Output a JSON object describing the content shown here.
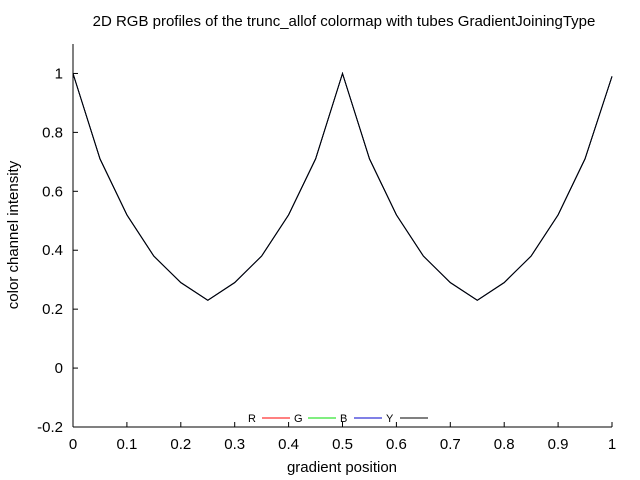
{
  "chart_data": {
    "type": "line",
    "title": "2D RGB profiles of the trunc_allof colormap with tubes GradientJoiningType",
    "xlabel": "gradient position",
    "ylabel": "color channel intensity",
    "xlim": [
      0,
      1
    ],
    "ylim": [
      -0.2,
      1.1
    ],
    "xticks": [
      "0",
      "0.1",
      "0.2",
      "0.3",
      "0.4",
      "0.5",
      "0.6",
      "0.7",
      "0.8",
      "0.9",
      "1"
    ],
    "yticks": [
      "-0.2",
      "0",
      "0.2",
      "0.4",
      "0.6",
      "0.8",
      "1"
    ],
    "grid": false,
    "legend_position": "bottom-center",
    "series": [
      {
        "name": "R",
        "color": "#ff0000",
        "x": [
          0,
          0.05,
          0.1,
          0.15,
          0.2,
          0.25,
          0.3,
          0.35,
          0.4,
          0.45,
          0.5,
          0.55,
          0.6,
          0.65,
          0.7,
          0.75,
          0.8,
          0.85,
          0.9,
          0.95,
          1
        ],
        "y": [
          1,
          0.71,
          0.52,
          0.38,
          0.29,
          0.23,
          0.29,
          0.38,
          0.52,
          0.71,
          1,
          0.71,
          0.52,
          0.38,
          0.29,
          0.23,
          0.29,
          0.38,
          0.52,
          0.71,
          0.99
        ]
      },
      {
        "name": "G",
        "color": "#00dd00",
        "x": [
          0,
          0.05,
          0.1,
          0.15,
          0.2,
          0.25,
          0.3,
          0.35,
          0.4,
          0.45,
          0.5,
          0.55,
          0.6,
          0.65,
          0.7,
          0.75,
          0.8,
          0.85,
          0.9,
          0.95,
          1
        ],
        "y": [
          1,
          0.71,
          0.52,
          0.38,
          0.29,
          0.23,
          0.29,
          0.38,
          0.52,
          0.71,
          1,
          0.71,
          0.52,
          0.38,
          0.29,
          0.23,
          0.29,
          0.38,
          0.52,
          0.71,
          0.99
        ]
      },
      {
        "name": "B",
        "color": "#0000cc",
        "x": [
          0,
          0.05,
          0.1,
          0.15,
          0.2,
          0.25,
          0.3,
          0.35,
          0.4,
          0.45,
          0.5,
          0.55,
          0.6,
          0.65,
          0.7,
          0.75,
          0.8,
          0.85,
          0.9,
          0.95,
          1
        ],
        "y": [
          1,
          0.71,
          0.52,
          0.38,
          0.29,
          0.23,
          0.29,
          0.38,
          0.52,
          0.71,
          1,
          0.71,
          0.52,
          0.38,
          0.29,
          0.23,
          0.29,
          0.38,
          0.52,
          0.71,
          0.99
        ]
      },
      {
        "name": "Y",
        "color": "#000000",
        "x": [
          0,
          0.05,
          0.1,
          0.15,
          0.2,
          0.25,
          0.3,
          0.35,
          0.4,
          0.45,
          0.5,
          0.55,
          0.6,
          0.65,
          0.7,
          0.75,
          0.8,
          0.85,
          0.9,
          0.95,
          1
        ],
        "y": [
          1,
          0.71,
          0.52,
          0.38,
          0.29,
          0.23,
          0.29,
          0.38,
          0.52,
          0.71,
          1,
          0.71,
          0.52,
          0.38,
          0.29,
          0.23,
          0.29,
          0.38,
          0.52,
          0.71,
          0.99
        ]
      }
    ]
  }
}
